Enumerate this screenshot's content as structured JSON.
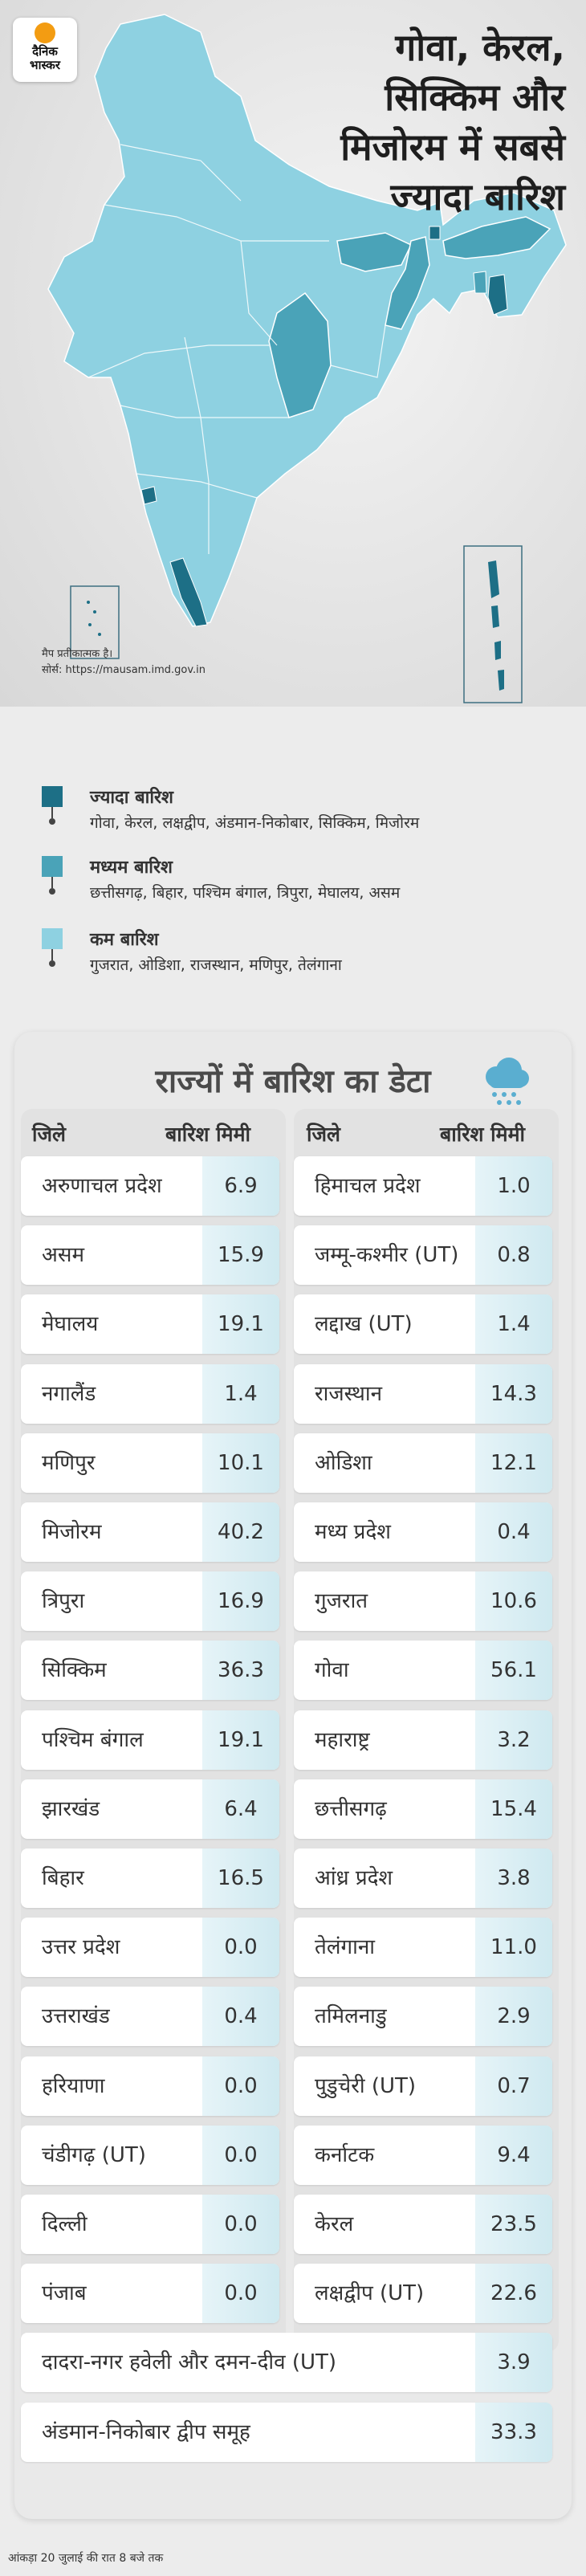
{
  "brand": {
    "line1": "दैनिक",
    "line2": "भास्कर"
  },
  "headline": [
    "गोवा, केरल,",
    "सिक्किम और",
    "मिजोरम में सबसे",
    "ज्यादा बारिश"
  ],
  "map_note": {
    "line1": "मैप प्रतीकात्मक है।",
    "line2": "सोर्स: https://mausam.imd.gov.in"
  },
  "colors": {
    "heavy": "#1d6f86",
    "medium": "#4aa3b8",
    "low": "#8ed1e1",
    "value_cell": "#d7edf3"
  },
  "legend": [
    {
      "title": "ज्यादा बारिश",
      "states": "गोवा, केरल, लक्षद्वीप, अंडमान-निकोबार, सिक्किम, मिजोरम",
      "color_key": "heavy"
    },
    {
      "title": "मध्यम बारिश",
      "states": "छत्तीसगढ़, बिहार, पश्चिम बंगाल, त्रिपुरा, मेघालय, असम",
      "color_key": "medium"
    },
    {
      "title": "कम बारिश",
      "states": "गुजरात, ओडिशा, राजस्थान, मणिपुर, तेलंगाना",
      "color_key": "low"
    }
  ],
  "table_title": "राज्यों में बारिश का डेटा",
  "icon": "rain-cloud-icon",
  "col_headers": {
    "name": "जिले",
    "value": "बारिश मिमी"
  },
  "chart_data": {
    "type": "table",
    "unit": "मिमी",
    "left": [
      {
        "name": "अरुणाचल प्रदेश",
        "value": "6.9"
      },
      {
        "name": "असम",
        "value": "15.9"
      },
      {
        "name": "मेघालय",
        "value": "19.1"
      },
      {
        "name": "नगालैंड",
        "value": "1.4"
      },
      {
        "name": "मणिपुर",
        "value": "10.1"
      },
      {
        "name": "मिजोरम",
        "value": "40.2"
      },
      {
        "name": "त्रिपुरा",
        "value": "16.9"
      },
      {
        "name": "सिक्किम",
        "value": "36.3"
      },
      {
        "name": "पश्चिम बंगाल",
        "value": "19.1"
      },
      {
        "name": "झारखंड",
        "value": "6.4"
      },
      {
        "name": "बिहार",
        "value": "16.5"
      },
      {
        "name": "उत्तर प्रदेश",
        "value": "0.0"
      },
      {
        "name": "उत्तराखंड",
        "value": "0.4"
      },
      {
        "name": "हरियाणा",
        "value": "0.0"
      },
      {
        "name": "चंडीगढ़ (UT)",
        "value": "0.0"
      },
      {
        "name": "दिल्ली",
        "value": "0.0"
      },
      {
        "name": "पंजाब",
        "value": "0.0"
      }
    ],
    "right": [
      {
        "name": "हिमाचल प्रदेश",
        "value": "1.0"
      },
      {
        "name": "जम्मू-कश्मीर (UT)",
        "value": "0.8"
      },
      {
        "name": "लद्दाख (UT)",
        "value": "1.4"
      },
      {
        "name": "राजस्थान",
        "value": "14.3"
      },
      {
        "name": "ओडिशा",
        "value": "12.1"
      },
      {
        "name": "मध्य प्रदेश",
        "value": "0.4"
      },
      {
        "name": "गुजरात",
        "value": "10.6"
      },
      {
        "name": "गोवा",
        "value": "56.1"
      },
      {
        "name": "महाराष्ट्र",
        "value": "3.2"
      },
      {
        "name": "छत्तीसगढ़",
        "value": "15.4"
      },
      {
        "name": "आंध्र प्रदेश",
        "value": "3.8"
      },
      {
        "name": "तेलंगाना",
        "value": "11.0"
      },
      {
        "name": "तमिलनाडु",
        "value": "2.9"
      },
      {
        "name": "पुडुचेरी (UT)",
        "value": "0.7"
      },
      {
        "name": "कर्नाटक",
        "value": "9.4"
      },
      {
        "name": "केरल",
        "value": "23.5"
      },
      {
        "name": "लक्षद्वीप (UT)",
        "value": "22.6"
      }
    ],
    "full_width": [
      {
        "name": "दादरा-नगर हवेली और दमन-दीव (UT)",
        "value": "3.9"
      },
      {
        "name": "अंडमान-निकोबार द्वीप समूह",
        "value": "33.3"
      }
    ]
  },
  "footnote": "आंकड़ा 20 जुलाई की रात 8 बजे तक"
}
